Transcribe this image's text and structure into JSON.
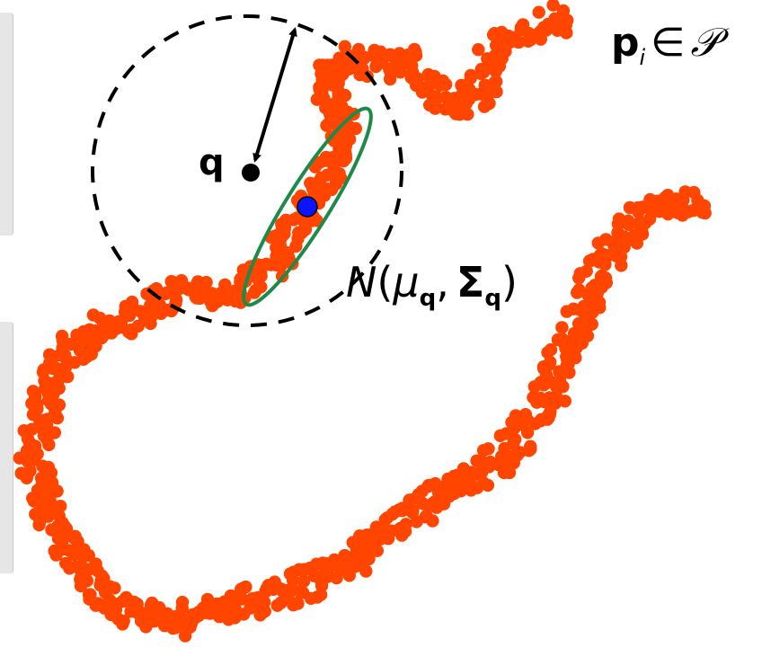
{
  "labels": {
    "query_point": "q",
    "point_set_p": "p",
    "point_set_sub": "i",
    "point_set_in": "∈",
    "point_set_script": "𝒫",
    "gaussian_n": "N",
    "gaussian_open": "(",
    "gaussian_mu": "μ",
    "gaussian_mu_sub": "q",
    "gaussian_comma": ",",
    "gaussian_sigma": "Σ",
    "gaussian_sigma_sub": "q",
    "gaussian_close": ")"
  },
  "colors": {
    "points": "#ff4500",
    "ellipse": "#1e8a4a",
    "mean": "#0a14ff",
    "query": "#000000",
    "circle": "#000000",
    "side_tab": "#e6e6e6"
  },
  "icons": {
    "radius_arrow": "double-headed-arrow",
    "neighborhood": "dashed-circle"
  }
}
